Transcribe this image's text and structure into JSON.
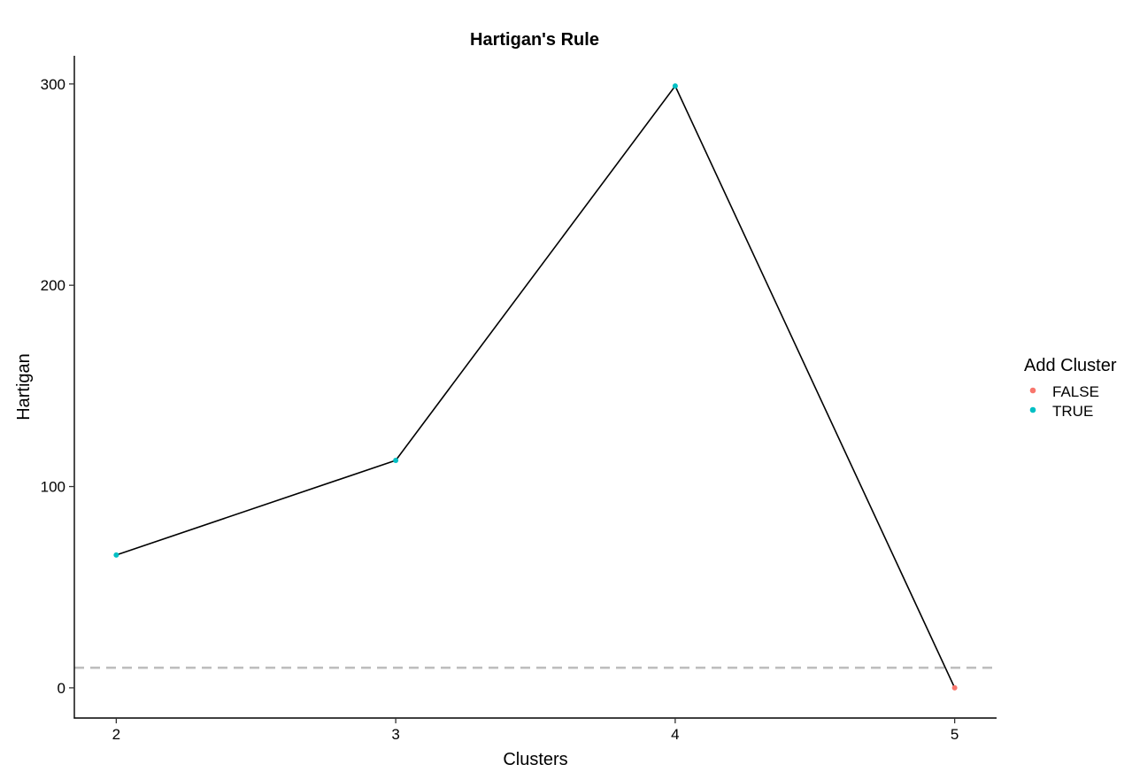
{
  "chart_data": {
    "type": "line",
    "title": "Hartigan's Rule",
    "xlabel": "Clusters",
    "ylabel": "Hartigan",
    "x": [
      2,
      3,
      4,
      5
    ],
    "series": [
      {
        "values": [
          66,
          113,
          299,
          0
        ],
        "line_color": "#000000",
        "point_groups": [
          "TRUE",
          "TRUE",
          "TRUE",
          "FALSE"
        ]
      }
    ],
    "xlim": [
      1.85,
      5.15
    ],
    "ylim": [
      -15,
      314
    ],
    "xticks": [
      2,
      3,
      4,
      5
    ],
    "yticks": [
      0,
      100,
      200,
      300
    ],
    "reference_line": {
      "y": 10,
      "style": "dashed",
      "color": "#bebebe"
    },
    "grid": false,
    "legend": {
      "title": "Add Cluster",
      "position": "right",
      "entries": [
        {
          "label": "FALSE",
          "color": "#f8766d"
        },
        {
          "label": "TRUE",
          "color": "#00bfc4"
        }
      ]
    }
  }
}
